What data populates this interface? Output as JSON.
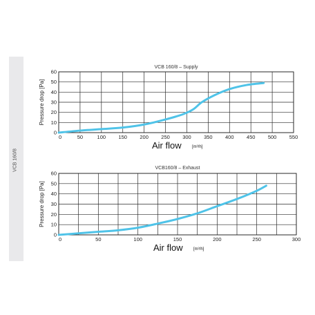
{
  "sidebar": {
    "label": "VCB 160/8"
  },
  "chart_data": [
    {
      "type": "line",
      "title": "VCB 160/8 – Supply",
      "xlabel": "Air flow",
      "xunit": "[m³/h]",
      "ylabel": "Pressure drop [Pa]",
      "xlim": [
        0,
        550
      ],
      "ylim": [
        0,
        60
      ],
      "xticks": [
        0,
        50,
        100,
        150,
        200,
        250,
        300,
        350,
        400,
        450,
        500,
        550
      ],
      "xtick_labels": [
        "0",
        "50",
        "100",
        "150",
        "200",
        "250",
        "300",
        "350",
        "400",
        "450",
        "500",
        "550"
      ],
      "yticks": [
        0,
        10,
        20,
        30,
        40,
        50,
        60
      ],
      "xgrid": [
        0,
        50,
        100,
        150,
        200,
        250,
        300,
        350,
        400,
        450,
        500,
        550
      ],
      "ygrid": [
        0,
        10,
        20,
        30,
        40,
        50,
        60
      ],
      "grid": true,
      "series": [
        {
          "x": [
            0,
            50,
            100,
            150,
            200,
            250,
            290,
            315,
            335,
            365,
            400,
            440,
            480
          ],
          "y": [
            0,
            2,
            3.5,
            5,
            8,
            13,
            18,
            23,
            30,
            37,
            43,
            47,
            49
          ]
        }
      ]
    },
    {
      "type": "line",
      "title": "VCB160/8 – Exhaust",
      "xlabel": "Air flow",
      "xunit": "[m³/h]",
      "ylabel": "Pressure drop [Pa]",
      "xlim": [
        0,
        300
      ],
      "ylim": [
        0,
        60
      ],
      "xticks": [
        0,
        50,
        100,
        150,
        200,
        250,
        300
      ],
      "xtick_labels": [
        "0",
        "50",
        "100",
        "150",
        "200",
        "250",
        "300"
      ],
      "yticks": [
        0,
        10,
        20,
        30,
        40,
        50,
        60
      ],
      "xgrid": [
        0,
        25,
        50,
        75,
        100,
        125,
        150,
        175,
        200,
        225,
        250,
        275,
        300
      ],
      "ygrid": [
        0,
        10,
        20,
        30,
        40,
        50,
        60
      ],
      "grid": true,
      "series": [
        {
          "x": [
            0,
            25,
            50,
            75,
            100,
            125,
            150,
            175,
            200,
            225,
            250,
            262
          ],
          "y": [
            0,
            1.5,
            3,
            4.5,
            7,
            11,
            15.5,
            21,
            28,
            35,
            43,
            48
          ]
        }
      ]
    }
  ]
}
